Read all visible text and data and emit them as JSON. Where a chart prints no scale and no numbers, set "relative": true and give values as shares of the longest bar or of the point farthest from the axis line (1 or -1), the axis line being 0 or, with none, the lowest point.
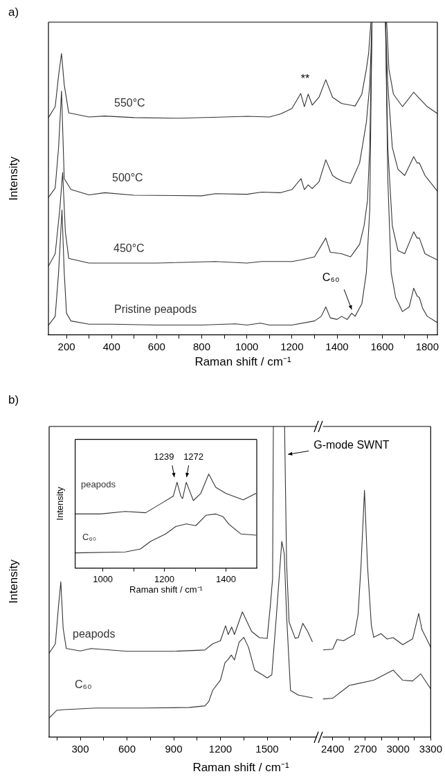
{
  "chart_data": [
    {
      "type": "line",
      "title": "a)",
      "relative": true,
      "xlabel": "Raman shift / cm⁻¹",
      "ylabel": "Intensity",
      "xlim": [
        120,
        1845
      ],
      "xticks": [
        200,
        {
          "value": 300,
          "label": null
        },
        400,
        {
          "value": 500,
          "label": null
        },
        600,
        {
          "value": 700,
          "label": null
        },
        800,
        {
          "value": 900,
          "label": null
        },
        1000,
        {
          "value": 1100,
          "label": null
        },
        1200,
        {
          "value": 1300,
          "label": null
        },
        1400,
        {
          "value": 1500,
          "label": null
        },
        1600,
        {
          "value": 1700,
          "label": null
        },
        1800
      ],
      "series": [
        {
          "name": "550°C",
          "color": "#333333",
          "x": [
            120,
            150,
            165,
            178,
            190,
            210,
            300,
            370,
            500,
            700,
            900,
            1000,
            1100,
            1150,
            1200,
            1239,
            1255,
            1272,
            1290,
            1320,
            1350,
            1380,
            1420,
            1480,
            1510,
            1530,
            1540,
            1550,
            1585,
            1620,
            1630,
            1650,
            1690,
            1740,
            1760,
            1800,
            1845
          ],
          "values": [
            0.695,
            0.73,
            0.83,
            0.9,
            0.8,
            0.71,
            0.697,
            0.7,
            0.695,
            0.693,
            0.697,
            0.699,
            0.697,
            0.707,
            0.724,
            0.772,
            0.73,
            0.77,
            0.735,
            0.76,
            0.816,
            0.76,
            0.74,
            0.732,
            0.77,
            0.85,
            0.9,
            1,
            null,
            1,
            0.85,
            0.77,
            0.73,
            0.776,
            0.76,
            0.73,
            0.708
          ]
        },
        {
          "name": "500°C",
          "color": "#333333",
          "x": [
            120,
            150,
            165,
            178,
            190,
            220,
            300,
            370,
            500,
            800,
            860,
            1000,
            1065,
            1150,
            1200,
            1240,
            1255,
            1272,
            1290,
            1320,
            1350,
            1380,
            1400,
            1430,
            1460,
            1500,
            1530,
            1545,
            1555,
            1585,
            1615,
            1625,
            1645,
            1670,
            1700,
            1740,
            1755,
            1765,
            1790,
            1845
          ],
          "values": [
            0.44,
            0.47,
            0.6,
            0.78,
            0.5,
            0.465,
            0.448,
            0.455,
            0.447,
            0.445,
            0.452,
            0.45,
            0.457,
            0.455,
            0.465,
            0.5,
            0.465,
            0.48,
            0.468,
            0.49,
            0.56,
            0.51,
            0.5,
            0.49,
            0.485,
            0.55,
            0.68,
            0.8,
            1,
            null,
            1,
            0.8,
            0.6,
            0.53,
            0.51,
            0.57,
            0.55,
            0.55,
            0.51,
            0.46
          ]
        },
        {
          "name": "450°C",
          "color": "#333333",
          "x": [
            120,
            150,
            170,
            183,
            195,
            210,
            300,
            600,
            860,
            1000,
            1065,
            1200,
            1240,
            1300,
            1350,
            1370,
            1420,
            1460,
            1500,
            1520,
            1535,
            1545,
            1555,
            1585,
            1615,
            1625,
            1645,
            1670,
            1700,
            1740,
            1755,
            1765,
            1790,
            1845
          ],
          "values": [
            0.22,
            0.26,
            0.4,
            0.52,
            0.33,
            0.245,
            0.23,
            0.23,
            0.235,
            0.23,
            0.235,
            0.235,
            0.24,
            0.25,
            0.31,
            0.265,
            0.26,
            0.25,
            0.29,
            0.35,
            0.43,
            0.6,
            1,
            null,
            1,
            0.6,
            0.35,
            0.27,
            0.26,
            0.33,
            0.31,
            0.31,
            0.26,
            0.24
          ]
        },
        {
          "name": "Pristine peapods",
          "color": "#333333",
          "x": [
            120,
            150,
            165,
            180,
            190,
            200,
            220,
            300,
            400,
            600,
            800,
            950,
            1000,
            1060,
            1100,
            1200,
            1300,
            1330,
            1350,
            1370,
            1400,
            1420,
            1445,
            1465,
            1480,
            1510,
            1530,
            1545,
            1555,
            1585,
            1615,
            1625,
            1640,
            1660,
            1690,
            1720,
            1740,
            1755,
            1765,
            1780,
            1800,
            1845
          ],
          "values": [
            0.031,
            0.06,
            0.2,
            0.4,
            0.2,
            0.07,
            0.045,
            0.035,
            0.035,
            0.032,
            0.032,
            0.036,
            0.032,
            0.038,
            0.032,
            0.032,
            0.045,
            0.06,
            0.09,
            0.055,
            0.05,
            0.06,
            0.05,
            0.07,
            0.06,
            0.1,
            0.2,
            0.4,
            1,
            null,
            1,
            0.5,
            0.2,
            0.12,
            0.075,
            0.09,
            0.15,
            0.125,
            0.12,
            0.085,
            0.06,
            0.04
          ]
        }
      ],
      "annotations": [
        "**",
        {
          "text": "C₆₀",
          "x": 1465,
          "y": 0.075
        }
      ]
    },
    {
      "type": "line",
      "title": "b)",
      "relative": true,
      "xlabel": "Raman shift / cm⁻¹",
      "ylabel": "Intensity",
      "xlim": [
        100,
        1820
      ],
      "xticks": [
        {
          "value": 150,
          "label": null
        },
        300,
        {
          "value": 450,
          "label": null
        },
        600,
        {
          "value": 750,
          "label": null
        },
        900,
        {
          "value": 1050,
          "label": null
        },
        1200,
        {
          "value": 1350,
          "label": null
        },
        1500,
        {
          "value": 1650,
          "label": null
        }
      ],
      "series": [
        {
          "name": "peapods",
          "color": "#333333",
          "x": [
            100,
            140,
            160,
            175,
            190,
            210,
            300,
            370,
            600,
            900,
            1100,
            1150,
            1200,
            1233,
            1250,
            1272,
            1290,
            1341,
            1400,
            1450,
            1500,
            1520,
            1535,
            1540,
            1575,
            1612,
            1625,
            1641,
            1680,
            1700,
            1729,
            1760,
            1790
          ],
          "values": [
            0.27,
            0.3,
            0.42,
            0.5,
            0.35,
            0.285,
            0.277,
            0.285,
            0.276,
            0.276,
            0.28,
            0.3,
            0.31,
            0.358,
            0.33,
            0.354,
            0.33,
            0.403,
            0.34,
            0.32,
            0.317,
            0.42,
            0.51,
            1,
            null,
            1,
            0.56,
            0.37,
            0.318,
            0.32,
            0.366,
            0.34,
            0.307
          ]
        },
        {
          "name": "C₆₀",
          "color": "#333333",
          "x": [
            100,
            150,
            200,
            400,
            700,
            1000,
            1100,
            1125,
            1150,
            1200,
            1230,
            1250,
            1270,
            1290,
            1320,
            1350,
            1380,
            1420,
            1470,
            1500,
            1530,
            1560,
            1594,
            1610,
            1625,
            1650,
            1700,
            1790
          ],
          "values": [
            0.061,
            0.086,
            0.088,
            0.093,
            0.093,
            0.095,
            0.1,
            0.114,
            0.15,
            0.183,
            0.24,
            0.25,
            0.264,
            0.248,
            0.305,
            0.321,
            0.289,
            0.215,
            0.2,
            0.19,
            0.2,
            0.394,
            0.63,
            0.59,
            0.39,
            0.15,
            0.135,
            0.126
          ]
        }
      ],
      "annotations": [
        {
          "text": "G-mode SWNT",
          "x": 1612,
          "y": 0.91
        }
      ]
    },
    {
      "type": "line",
      "relative": true,
      "xlim": [
        2310,
        3300
      ],
      "xticks": [
        2400,
        {
          "value": 2550,
          "label": null
        },
        2700,
        {
          "value": 2850,
          "label": null
        },
        3000,
        {
          "value": 3150,
          "label": null
        },
        3300
      ],
      "series": [
        {
          "color": "#333333",
          "x": [
            2313,
            2400,
            2440,
            2500,
            2600,
            2633,
            2660,
            2692,
            2720,
            2755,
            2777,
            2844,
            2900,
            2955,
            3043,
            3134,
            3190,
            3220,
            3300
          ],
          "values": [
            0.353,
            0.356,
            0.395,
            0.39,
            0.416,
            0.496,
            0.693,
            1,
            0.693,
            0.453,
            0.404,
            0.419,
            0.397,
            0.403,
            0.374,
            0.398,
            0.501,
            0.435,
            0.364
          ]
        },
        {
          "color": "#333333",
          "x": [
            2313,
            2400,
            2553,
            2777,
            2955,
            3043,
            3134,
            3208,
            3300
          ],
          "values": [
            0.154,
            0.157,
            0.209,
            0.23,
            0.271,
            0.23,
            0.227,
            0.256,
            0.195
          ]
        }
      ]
    },
    {
      "type": "line",
      "relative": true,
      "xlabel": "Raman shift / cm⁻¹",
      "ylabel": "Intensity",
      "xlim": [
        910,
        1500
      ],
      "xticks": [
        1000,
        {
          "value": 1100,
          "label": null
        },
        1200,
        {
          "value": 1300,
          "label": null
        },
        1400
      ],
      "series": [
        {
          "name": "peapods",
          "color": "#333333",
          "x": [
            910,
            992,
            1073,
            1139,
            1188,
            1229,
            1241,
            1253,
            1259,
            1271,
            1294,
            1318,
            1344,
            1367,
            1400,
            1456,
            1497
          ],
          "values": [
            0.575,
            0.575,
            0.602,
            0.588,
            0.684,
            0.766,
            0.912,
            0.766,
            0.739,
            0.912,
            0.718,
            0.793,
            1,
            0.858,
            0.793,
            0.725,
            0.793
          ]
        },
        {
          "name": "C₆₀",
          "color": "#333333",
          "x": [
            910,
            1073,
            1122,
            1155,
            1204,
            1237,
            1271,
            1302,
            1335,
            1367,
            1390,
            1410,
            1448,
            1497
          ],
          "values": [
            0.161,
            0.171,
            0.202,
            0.283,
            0.363,
            0.442,
            0.469,
            0.451,
            0.561,
            0.575,
            0.547,
            0.465,
            0.363,
            0.35
          ]
        }
      ],
      "annotations": [
        {
          "text": "1239",
          "x": 1239,
          "y": 0.93
        },
        {
          "text": "1272",
          "x": 1272,
          "y": 0.93
        }
      ]
    }
  ]
}
